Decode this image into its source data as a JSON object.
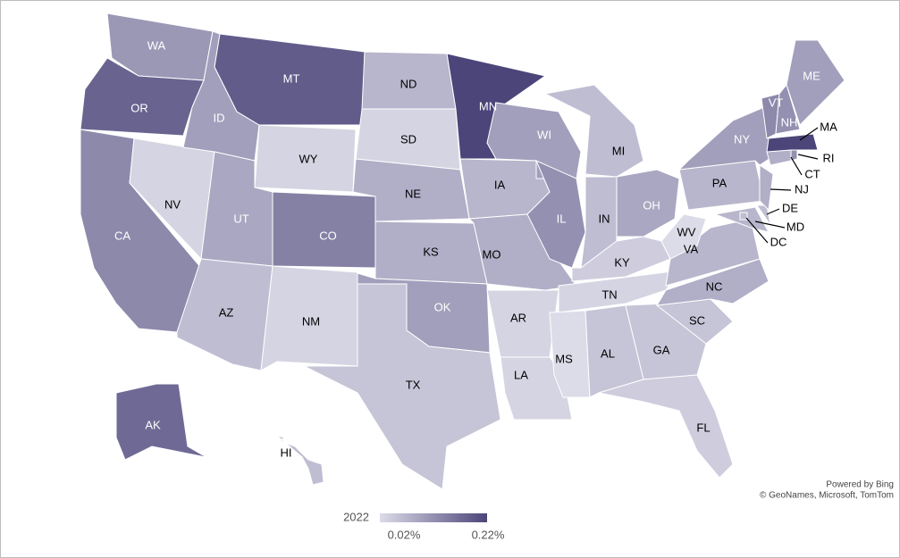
{
  "chart_data": {
    "type": "choropleth",
    "categories": [
      "WA",
      "OR",
      "CA",
      "NV",
      "ID",
      "MT",
      "WY",
      "UT",
      "AZ",
      "CO",
      "NM",
      "ND",
      "SD",
      "NE",
      "KS",
      "OK",
      "TX",
      "MN",
      "IA",
      "MO",
      "AR",
      "LA",
      "WI",
      "IL",
      "MI",
      "IN",
      "OH",
      "KY",
      "TN",
      "MS",
      "AL",
      "GA",
      "FL",
      "SC",
      "NC",
      "VA",
      "WV",
      "PA",
      "NY",
      "MD",
      "DE",
      "NJ",
      "CT",
      "RI",
      "MA",
      "VT",
      "NH",
      "ME",
      "DC",
      "AK",
      "HI"
    ],
    "values": [
      0.11,
      0.18,
      0.13,
      0.03,
      0.1,
      0.19,
      0.03,
      0.09,
      0.06,
      0.14,
      0.03,
      0.07,
      0.03,
      0.08,
      0.08,
      0.1,
      0.05,
      0.22,
      0.07,
      0.08,
      0.03,
      0.03,
      0.1,
      0.12,
      0.06,
      0.06,
      0.09,
      0.04,
      0.03,
      0.02,
      0.05,
      0.05,
      0.04,
      0.05,
      0.08,
      0.07,
      0.02,
      0.07,
      0.1,
      0.07,
      0.06,
      0.08,
      0.08,
      0.12,
      0.22,
      0.13,
      0.12,
      0.1,
      0.06,
      0.17,
      0.06
    ],
    "colors": [
      "#dcdbe8",
      "#4b4579"
    ],
    "legend_title": "2022",
    "colorlim": [
      0.02,
      0.22
    ],
    "colorticks": [
      {
        "value": 0.02,
        "label": "0.02%"
      },
      {
        "value": 0.22,
        "label": "0.22%"
      }
    ],
    "attribution": [
      "Powered by Bing",
      "© GeoNames, Microsoft, TomTom"
    ]
  }
}
